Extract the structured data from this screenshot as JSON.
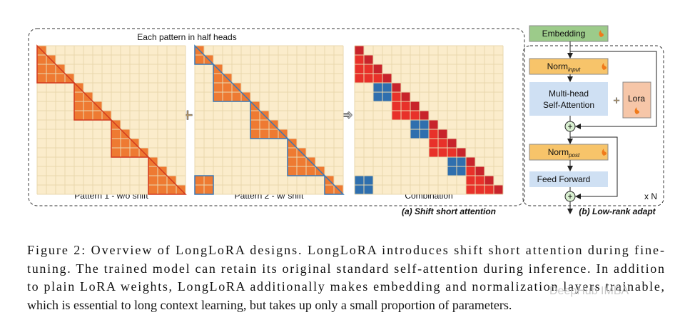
{
  "figure": {
    "pattern_header": "Each pattern in half heads",
    "panels": [
      "Pattern 1 - w/o shift",
      "Pattern 2 - w/ shift",
      "Combination"
    ],
    "caption_a": "(a) Shift short attention",
    "blocks": {
      "embedding": "Embedding",
      "norm_input": {
        "main": "Norm",
        "sub": "input"
      },
      "attention": [
        "Multi-head",
        "Self-Attention"
      ],
      "lora": "Lora",
      "norm_post": {
        "main": "Norm",
        "sub": "post"
      },
      "feed_forward": "Feed Forward",
      "repeat": "x N"
    },
    "caption_b": "(b) Low-rank adapt"
  },
  "caption": {
    "lines": [
      "Figure 2: Overview of LongLoRA designs. LongLoRA introduces shift short attention during fine-",
      "tuning. The trained model can retain its original standard self-attention during inference. In addition",
      "to plain LoRA weights, LongLoRA additionally makes embedding and normalization layers trainable,",
      "which is essential to long context learning, but takes up only a small proportion of parameters."
    ]
  },
  "watermark": "DeepHub IMBA"
}
